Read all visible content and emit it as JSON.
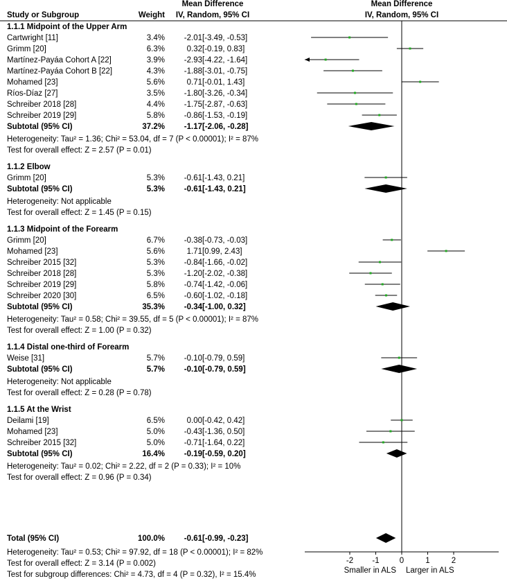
{
  "chart_data": {
    "type": "forest",
    "header": {
      "study_col": "Study or Subgroup",
      "weight_col": "Weight",
      "md_title": "Mean Difference",
      "md_subtitle": "IV, Random, 95% CI",
      "plot_title": "Mean Difference",
      "plot_subtitle": "IV, Random, 95% CI"
    },
    "axis": {
      "ticks": [
        -2,
        -1,
        0,
        1,
        2
      ],
      "tick_labels": [
        "-2",
        "-1",
        "0",
        "1",
        "2"
      ],
      "xlim": [
        -3.5,
        3.5
      ],
      "label_left": "Smaller in ALS",
      "label_right": "Larger in ALS"
    },
    "subgroups": [
      {
        "title": "1.1.1 Midpoint of the Upper Arm",
        "studies": [
          {
            "name": "Cartwright [11]",
            "weight": "3.4%",
            "ci_text": "-2.01 [-3.49, -0.53]",
            "md": -2.01,
            "lo": -3.49,
            "hi": -0.53
          },
          {
            "name": "Grimm [20]",
            "weight": "6.3%",
            "ci_text": "0.32 [-0.19, 0.83]",
            "md": 0.32,
            "lo": -0.19,
            "hi": 0.83
          },
          {
            "name": "Martínez-Payáa Cohort A [22]",
            "weight": "3.9%",
            "ci_text": "-2.93 [-4.22, -1.64]",
            "md": -2.93,
            "lo": -4.22,
            "hi": -1.64
          },
          {
            "name": "Martínez-Payáa Cohort B [22]",
            "weight": "4.3%",
            "ci_text": "-1.88 [-3.01, -0.75]",
            "md": -1.88,
            "lo": -3.01,
            "hi": -0.75
          },
          {
            "name": "Mohamed [23]",
            "weight": "5.6%",
            "ci_text": "0.71 [-0.01, 1.43]",
            "md": 0.71,
            "lo": -0.01,
            "hi": 1.43
          },
          {
            "name": "Ríos-Díaz [27]",
            "weight": "3.5%",
            "ci_text": "-1.80 [-3.26, -0.34]",
            "md": -1.8,
            "lo": -3.26,
            "hi": -0.34
          },
          {
            "name": "Schreiber 2018 [28]",
            "weight": "4.4%",
            "ci_text": "-1.75 [-2.87, -0.63]",
            "md": -1.75,
            "lo": -2.87,
            "hi": -0.63
          },
          {
            "name": "Schreiber 2019 [29]",
            "weight": "5.8%",
            "ci_text": "-0.86 [-1.53, -0.19]",
            "md": -0.86,
            "lo": -1.53,
            "hi": -0.19
          }
        ],
        "subtotal": {
          "label": "Subtotal (95% CI)",
          "weight": "37.2%",
          "ci_text": "-1.17 [-2.06, -0.28]",
          "md": -1.17,
          "lo": -2.06,
          "hi": -0.28
        },
        "heterogeneity": "Heterogeneity: Tau² = 1.36; Chi² = 53.04, df = 7 (P < 0.00001); I² = 87%",
        "overall": "Test for overall effect: Z = 2.57 (P = 0.01)"
      },
      {
        "title": "1.1.2 Elbow",
        "studies": [
          {
            "name": "Grimm [20]",
            "weight": "5.3%",
            "ci_text": "-0.61 [-1.43, 0.21]",
            "md": -0.61,
            "lo": -1.43,
            "hi": 0.21
          }
        ],
        "subtotal": {
          "label": "Subtotal (95% CI)",
          "weight": "5.3%",
          "ci_text": "-0.61 [-1.43, 0.21]",
          "md": -0.61,
          "lo": -1.43,
          "hi": 0.21
        },
        "heterogeneity": "Heterogeneity: Not applicable",
        "overall": "Test for overall effect: Z = 1.45 (P = 0.15)"
      },
      {
        "title": "1.1.3 Midpoint of the Forearm",
        "studies": [
          {
            "name": "Grimm [20]",
            "weight": "6.7%",
            "ci_text": "-0.38 [-0.73, -0.03]",
            "md": -0.38,
            "lo": -0.73,
            "hi": -0.03
          },
          {
            "name": "Mohamed [23]",
            "weight": "5.6%",
            "ci_text": "1.71 [0.99, 2.43]",
            "md": 1.71,
            "lo": 0.99,
            "hi": 2.43
          },
          {
            "name": "Schreiber 2015 [32]",
            "weight": "5.3%",
            "ci_text": "-0.84 [-1.66, -0.02]",
            "md": -0.84,
            "lo": -1.66,
            "hi": -0.02
          },
          {
            "name": "Schreiber 2018 [28]",
            "weight": "5.3%",
            "ci_text": "-1.20 [-2.02, -0.38]",
            "md": -1.2,
            "lo": -2.02,
            "hi": -0.38
          },
          {
            "name": "Schreiber 2019 [29]",
            "weight": "5.8%",
            "ci_text": "-0.74 [-1.42, -0.06]",
            "md": -0.74,
            "lo": -1.42,
            "hi": -0.06
          },
          {
            "name": "Schreiber 2020 [30]",
            "weight": "6.5%",
            "ci_text": "-0.60 [-1.02, -0.18]",
            "md": -0.6,
            "lo": -1.02,
            "hi": -0.18
          }
        ],
        "subtotal": {
          "label": "Subtotal (95% CI)",
          "weight": "35.3%",
          "ci_text": "-0.34 [-1.00, 0.32]",
          "md": -0.34,
          "lo": -1.0,
          "hi": 0.32
        },
        "heterogeneity": "Heterogeneity: Tau² = 0.58; Chi² = 39.55, df = 5 (P < 0.00001); I² = 87%",
        "overall": "Test for overall effect: Z = 1.00 (P = 0.32)"
      },
      {
        "title": "1.1.4 Distal one-third of Forearm",
        "studies": [
          {
            "name": "Weise [31]",
            "weight": "5.7%",
            "ci_text": "-0.10 [-0.79, 0.59]",
            "md": -0.1,
            "lo": -0.79,
            "hi": 0.59
          }
        ],
        "subtotal": {
          "label": "Subtotal (95% CI)",
          "weight": "5.7%",
          "ci_text": "-0.10 [-0.79, 0.59]",
          "md": -0.1,
          "lo": -0.79,
          "hi": 0.59
        },
        "heterogeneity": "Heterogeneity: Not applicable",
        "overall": "Test for overall effect: Z = 0.28 (P = 0.78)"
      },
      {
        "title": "1.1.5 At the Wrist",
        "studies": [
          {
            "name": "Deilami [19]",
            "weight": "6.5%",
            "ci_text": "0.00 [-0.42, 0.42]",
            "md": 0.0,
            "lo": -0.42,
            "hi": 0.42
          },
          {
            "name": "Mohamed [23]",
            "weight": "5.0%",
            "ci_text": "-0.43 [-1.36, 0.50]",
            "md": -0.43,
            "lo": -1.36,
            "hi": 0.5
          },
          {
            "name": "Schreiber 2015 [32]",
            "weight": "5.0%",
            "ci_text": "-0.71 [-1.64, 0.22]",
            "md": -0.71,
            "lo": -1.64,
            "hi": 0.22
          }
        ],
        "subtotal": {
          "label": "Subtotal (95% CI)",
          "weight": "16.4%",
          "ci_text": "-0.19 [-0.59, 0.20]",
          "md": -0.19,
          "lo": -0.59,
          "hi": 0.2
        },
        "heterogeneity": "Heterogeneity: Tau² = 0.02; Chi² = 2.22, df = 2 (P = 0.33); I² = 10%",
        "overall": "Test for overall effect: Z = 0.96 (P = 0.34)"
      }
    ],
    "total": {
      "label": "Total (95% CI)",
      "weight": "100.0%",
      "ci_text": "-0.61 [-0.99, -0.23]",
      "md": -0.61,
      "lo": -0.99,
      "hi": -0.23
    },
    "footer": [
      "Heterogeneity: Tau² = 0.53; Chi² = 97.92, df = 18 (P < 0.00001); I² = 82%",
      "Test for overall effect: Z = 3.14 (P = 0.002)",
      "Test for subgroup differences: Chi² = 4.73, df = 4 (P = 0.32), I² = 15.4%"
    ],
    "colors": {
      "point": "#22aa22",
      "line": "#000000"
    }
  }
}
